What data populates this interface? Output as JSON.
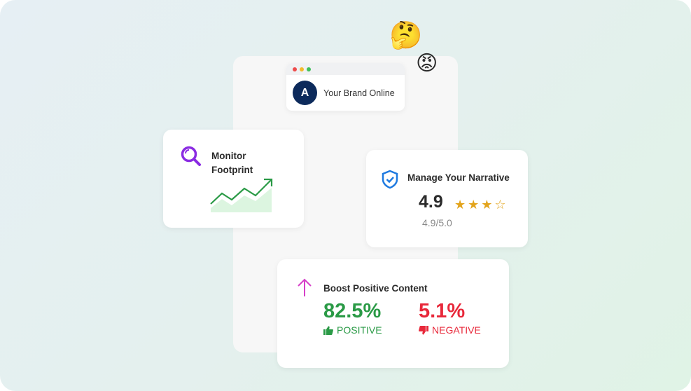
{
  "browser": {
    "avatar_letter": "A",
    "brand": "Your Brand Online",
    "dots": [
      "#ee4b4b",
      "#f2bb2c",
      "#3fbf5a"
    ]
  },
  "monitor": {
    "title": "Monitor Footprint",
    "icon": "magnifier-icon",
    "accent": "#8a2be2"
  },
  "narrative": {
    "title": "Manage Your Narrative",
    "score": "4.9",
    "stars": "★★★☆",
    "subtitle": "4.9/5.0",
    "icon": "shield-check-icon",
    "accent": "#1e7ae0"
  },
  "boost": {
    "title": "Boost Positive Content",
    "icon": "arrow-up-icon",
    "positive": {
      "value": "82.5%",
      "label": "POSITIVE",
      "color": "#2a9a46"
    },
    "negative": {
      "value": "5.1%",
      "label": "NEGATIVE",
      "color": "#e8283a"
    }
  },
  "emojis": {
    "thinking": "🤔",
    "angry": "😡"
  }
}
